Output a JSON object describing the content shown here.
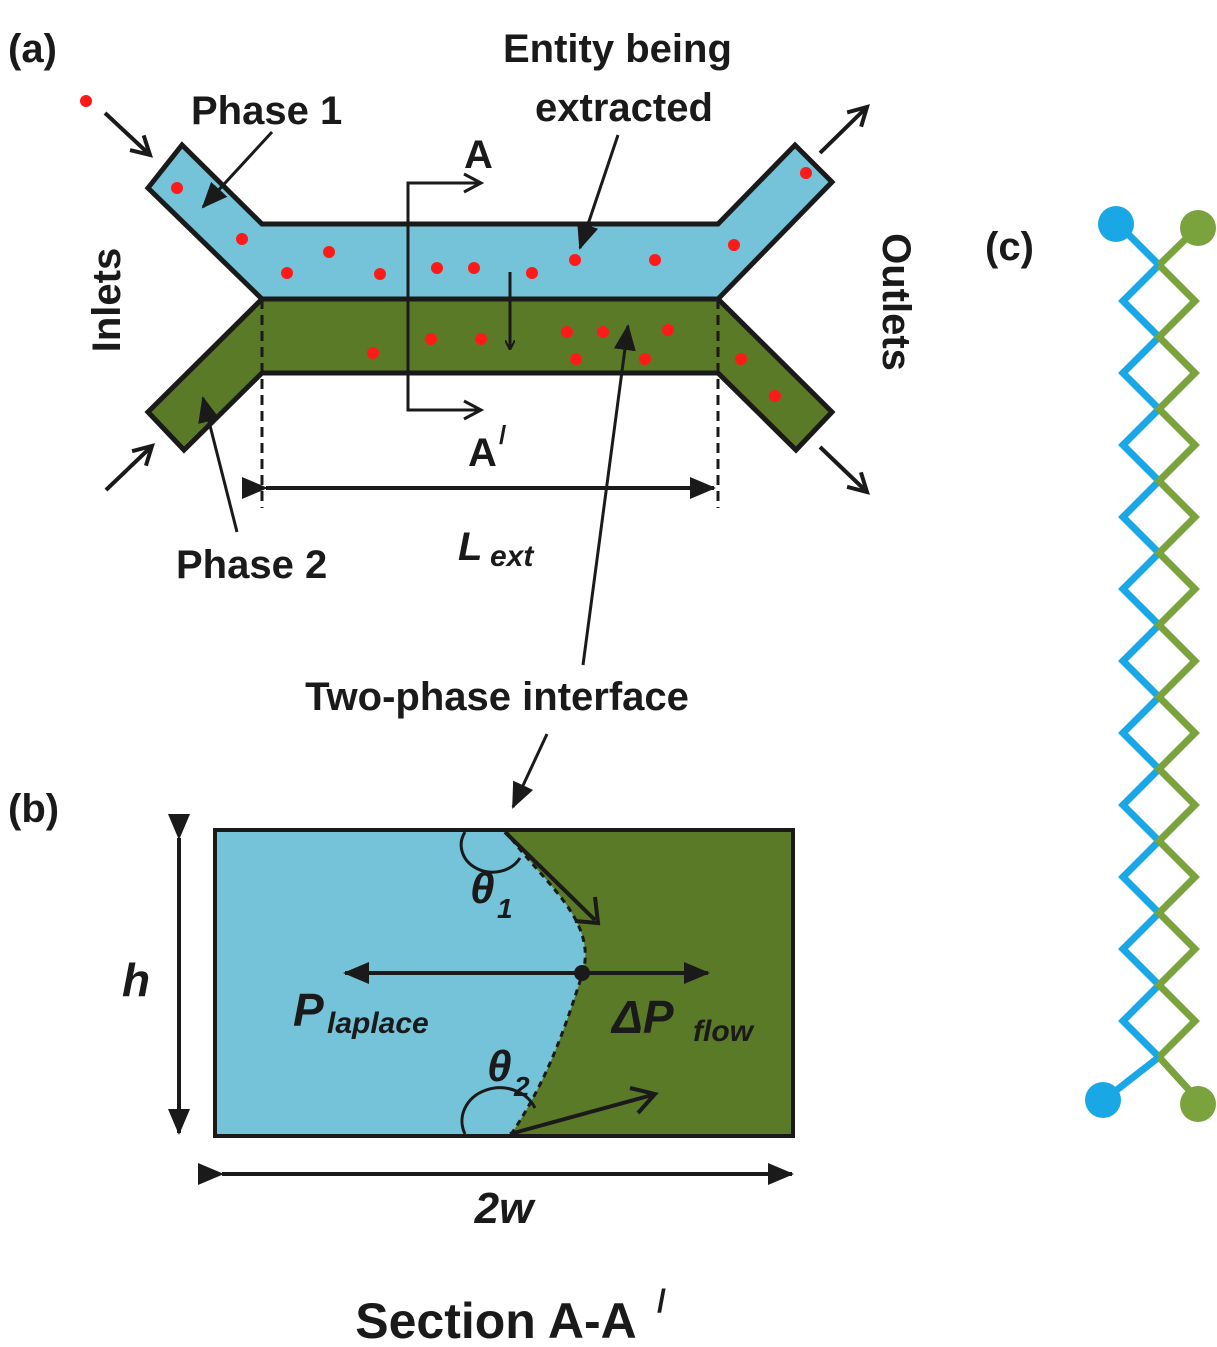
{
  "colors": {
    "phase1": "#74c3d8",
    "phase2": "#5a7a27",
    "particle": "#ff1a1a",
    "channel_c_phase1": "#1aa7e6",
    "channel_c_phase2": "#7aa33d",
    "outline": "#1a1a1a"
  },
  "panel_a": {
    "label": "(a)",
    "phase1": "Phase 1",
    "phase2": "Phase 2",
    "entity_line1": "Entity being",
    "entity_line2": "extracted",
    "inlets": "Inlets",
    "outlets": "Outlets",
    "section_a": "A",
    "section_a_prime": "A",
    "section_a_prime_mark": "/",
    "length_symbol": "L",
    "length_subscript": "ext",
    "interface": "Two-phase interface"
  },
  "panel_b": {
    "label": "(b)",
    "height": "h",
    "width": "2w",
    "theta1_symbol": "θ",
    "theta1_subscript": "1",
    "theta2_symbol": "θ",
    "theta2_subscript": "2",
    "p_laplace_symbol": "P",
    "p_laplace_subscript": "laplace",
    "dp_flow_symbol": "ΔP",
    "dp_flow_subscript": "flow",
    "section_title": "Section A-A",
    "section_title_mark": "/"
  },
  "panel_c": {
    "label": "(c)"
  }
}
